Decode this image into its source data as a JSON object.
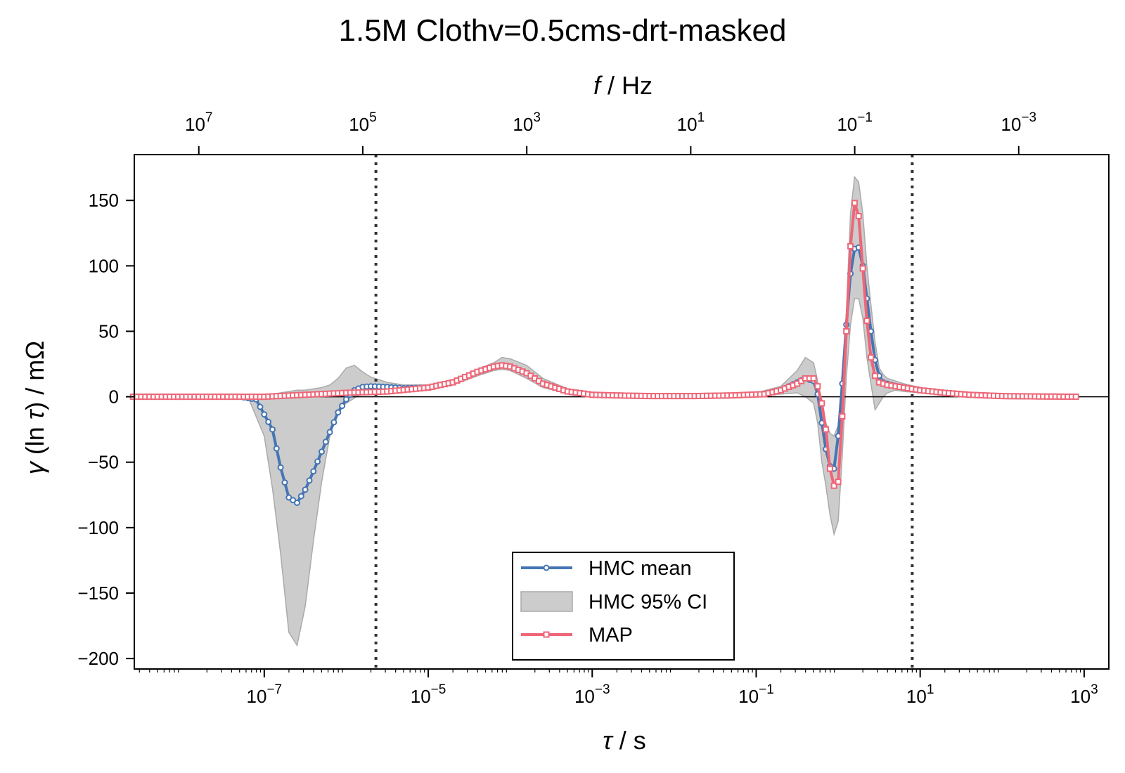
{
  "chart_data": {
    "type": "line",
    "title": "1.5M Clothv=0.5cms-drt-masked",
    "x_scale": "log",
    "xlabel": "τ / s",
    "xlabel_symbol": "τ",
    "xlabel_unit": " / s",
    "ylabel": "γ (ln τ) / mΩ",
    "ylabel_symbol_gamma": "γ",
    "ylabel_paren_open": " (ln ",
    "ylabel_symbol_tau": "τ",
    "ylabel_paren_close": ") / mΩ",
    "top_xlabel": "f / Hz",
    "top_xlabel_symbol": "f",
    "top_xlabel_unit": " / Hz",
    "xlim": [
      2.6e-09,
      2000
    ],
    "ylim": [
      -208,
      185
    ],
    "grid": false,
    "legend_position": "lower-center",
    "x_ticks": [
      {
        "value": 1e-07,
        "base": "10",
        "exp": "−7"
      },
      {
        "value": 1e-05,
        "base": "10",
        "exp": "−5"
      },
      {
        "value": 0.001,
        "base": "10",
        "exp": "−3"
      },
      {
        "value": 0.1,
        "base": "10",
        "exp": "−1"
      },
      {
        "value": 10,
        "base": "10",
        "exp": "1"
      },
      {
        "value": 1000,
        "base": "10",
        "exp": "3"
      }
    ],
    "top_ticks": [
      {
        "value": 10000000.0,
        "base": "10",
        "exp": "7"
      },
      {
        "value": 100000.0,
        "base": "10",
        "exp": "5"
      },
      {
        "value": 1000.0,
        "base": "10",
        "exp": "3"
      },
      {
        "value": 10,
        "base": "10",
        "exp": "1"
      },
      {
        "value": 0.1,
        "base": "10",
        "exp": "−1"
      },
      {
        "value": 0.001,
        "base": "10",
        "exp": "−3"
      }
    ],
    "y_ticks": [
      {
        "value": 150,
        "label": "150"
      },
      {
        "value": 100,
        "label": "100"
      },
      {
        "value": 50,
        "label": "50"
      },
      {
        "value": 0,
        "label": "0"
      },
      {
        "value": -50,
        "label": "−50"
      },
      {
        "value": -100,
        "label": "−100"
      },
      {
        "value": -150,
        "label": "−150"
      },
      {
        "value": -200,
        "label": "−200"
      }
    ],
    "vlines_tau": [
      2.3e-06,
      8.0
    ],
    "colors": {
      "hmc": "#4575b4",
      "map": "#ee6677",
      "ci": "#bbbbbb",
      "vline": "#333333"
    },
    "series": [
      {
        "name": "HMC mean",
        "marker": "circle",
        "key_points": [
          [
            -8.6,
            0
          ],
          [
            -7.3,
            0
          ],
          [
            -7.1,
            -2
          ],
          [
            -6.9,
            -25
          ],
          [
            -6.8,
            -54
          ],
          [
            -6.7,
            -77
          ],
          [
            -6.6,
            -81
          ],
          [
            -6.5,
            -71
          ],
          [
            -6.4,
            -57
          ],
          [
            -6.3,
            -42
          ],
          [
            -6.2,
            -27
          ],
          [
            -6.1,
            -12
          ],
          [
            -6.0,
            -2
          ],
          [
            -5.9,
            5
          ],
          [
            -5.8,
            7.5
          ],
          [
            -5.7,
            8
          ],
          [
            -5.5,
            7.5
          ],
          [
            -5.3,
            6.5
          ],
          [
            -5.0,
            7
          ],
          [
            -4.7,
            11
          ],
          [
            -4.4,
            19
          ],
          [
            -4.2,
            23
          ],
          [
            -4.1,
            24
          ],
          [
            -4.0,
            23
          ],
          [
            -3.8,
            18
          ],
          [
            -3.6,
            10
          ],
          [
            -3.3,
            4
          ],
          [
            -3.0,
            1.5
          ],
          [
            -2.7,
            1
          ],
          [
            -2.3,
            0.5
          ],
          [
            -1.8,
            0.5
          ],
          [
            -1.3,
            1
          ],
          [
            -0.9,
            2
          ],
          [
            -0.7,
            5
          ],
          [
            -0.5,
            11
          ],
          [
            -0.4,
            14
          ],
          [
            -0.3,
            12
          ],
          [
            -0.25,
            2
          ],
          [
            -0.2,
            -20
          ],
          [
            -0.15,
            -40
          ],
          [
            -0.1,
            -53
          ],
          [
            -0.05,
            -55
          ],
          [
            0.0,
            -30
          ],
          [
            0.05,
            10
          ],
          [
            0.1,
            55
          ],
          [
            0.15,
            94
          ],
          [
            0.2,
            113
          ],
          [
            0.25,
            114
          ],
          [
            0.3,
            100
          ],
          [
            0.35,
            75
          ],
          [
            0.4,
            50
          ],
          [
            0.45,
            28
          ],
          [
            0.5,
            16
          ],
          [
            0.55,
            11
          ],
          [
            0.65,
            9
          ],
          [
            0.8,
            7
          ],
          [
            1.0,
            5
          ],
          [
            1.3,
            3
          ],
          [
            1.6,
            1.5
          ],
          [
            2.0,
            0.5
          ],
          [
            2.5,
            0.2
          ],
          [
            2.9,
            0
          ]
        ]
      },
      {
        "name": "MAP",
        "marker": "square",
        "key_points": [
          [
            -8.6,
            0
          ],
          [
            -7.0,
            0
          ],
          [
            -6.5,
            1.5
          ],
          [
            -6.0,
            3
          ],
          [
            -5.5,
            4
          ],
          [
            -5.0,
            7
          ],
          [
            -4.7,
            11
          ],
          [
            -4.4,
            19
          ],
          [
            -4.2,
            23
          ],
          [
            -4.1,
            24
          ],
          [
            -4.0,
            23
          ],
          [
            -3.8,
            18
          ],
          [
            -3.6,
            10
          ],
          [
            -3.3,
            4
          ],
          [
            -3.0,
            1.5
          ],
          [
            -2.7,
            1
          ],
          [
            -2.3,
            0.5
          ],
          [
            -1.8,
            0.5
          ],
          [
            -1.3,
            1
          ],
          [
            -0.9,
            2
          ],
          [
            -0.7,
            5
          ],
          [
            -0.5,
            10
          ],
          [
            -0.4,
            14
          ],
          [
            -0.3,
            14
          ],
          [
            -0.25,
            8
          ],
          [
            -0.2,
            -5
          ],
          [
            -0.15,
            -25
          ],
          [
            -0.1,
            -55
          ],
          [
            -0.05,
            -68
          ],
          [
            0.0,
            -65
          ],
          [
            0.05,
            -15
          ],
          [
            0.1,
            50
          ],
          [
            0.15,
            115
          ],
          [
            0.2,
            148
          ],
          [
            0.25,
            138
          ],
          [
            0.3,
            98
          ],
          [
            0.35,
            58
          ],
          [
            0.4,
            30
          ],
          [
            0.45,
            16
          ],
          [
            0.5,
            11
          ],
          [
            0.6,
            9
          ],
          [
            0.8,
            7
          ],
          [
            1.0,
            5
          ],
          [
            1.3,
            3
          ],
          [
            1.6,
            1.5
          ],
          [
            2.0,
            0.5
          ],
          [
            2.5,
            0.2
          ],
          [
            2.9,
            0
          ]
        ]
      }
    ],
    "ci_band": {
      "name": "HMC 95% CI",
      "log_tau": [
        -7.2,
        -7.0,
        -6.9,
        -6.8,
        -6.7,
        -6.6,
        -6.5,
        -6.4,
        -6.3,
        -6.2,
        -6.1,
        -6.0,
        -5.9,
        -5.8,
        -5.7,
        -5.5,
        -5.3,
        -5.0,
        -4.7,
        -4.4,
        -4.2,
        -4.1,
        -4.0,
        -3.8,
        -3.6,
        -3.3,
        -3.0,
        -2.5,
        -2.0,
        -1.5,
        -1.0,
        -0.7,
        -0.5,
        -0.4,
        -0.3,
        -0.25,
        -0.2,
        -0.15,
        -0.1,
        -0.05,
        0.0,
        0.05,
        0.1,
        0.15,
        0.2,
        0.25,
        0.3,
        0.35,
        0.4,
        0.45,
        0.5,
        0.55,
        0.6,
        0.7,
        0.8,
        1.0,
        1.3,
        1.6,
        2.0,
        2.5
      ],
      "upper": [
        0,
        1,
        2,
        3,
        4,
        5,
        5,
        6,
        7,
        9,
        14,
        22,
        24,
        19,
        15,
        11,
        9,
        9,
        13,
        21,
        26,
        30,
        29,
        24,
        14,
        6,
        2.5,
        1.5,
        1,
        1.5,
        3,
        8,
        20,
        30,
        26,
        12,
        -5,
        -20,
        -28,
        -30,
        -22,
        10,
        65,
        140,
        168,
        164,
        140,
        100,
        70,
        42,
        22,
        17,
        14,
        12,
        10,
        7,
        4,
        2,
        0.5,
        0.2
      ],
      "lower": [
        0,
        -30,
        -70,
        -120,
        -180,
        -190,
        -160,
        -110,
        -65,
        -30,
        -10,
        -5,
        -1,
        3,
        4,
        4,
        3.5,
        5,
        9,
        16,
        20,
        21,
        20,
        14,
        7,
        2.5,
        0.5,
        0,
        0,
        0,
        1,
        2,
        3,
        0,
        -5,
        -20,
        -50,
        -68,
        -90,
        -105,
        -95,
        -45,
        15,
        55,
        75,
        75,
        60,
        30,
        10,
        -10,
        -5,
        0,
        3,
        5,
        4,
        3,
        2,
        1,
        0.2,
        0
      ]
    }
  }
}
